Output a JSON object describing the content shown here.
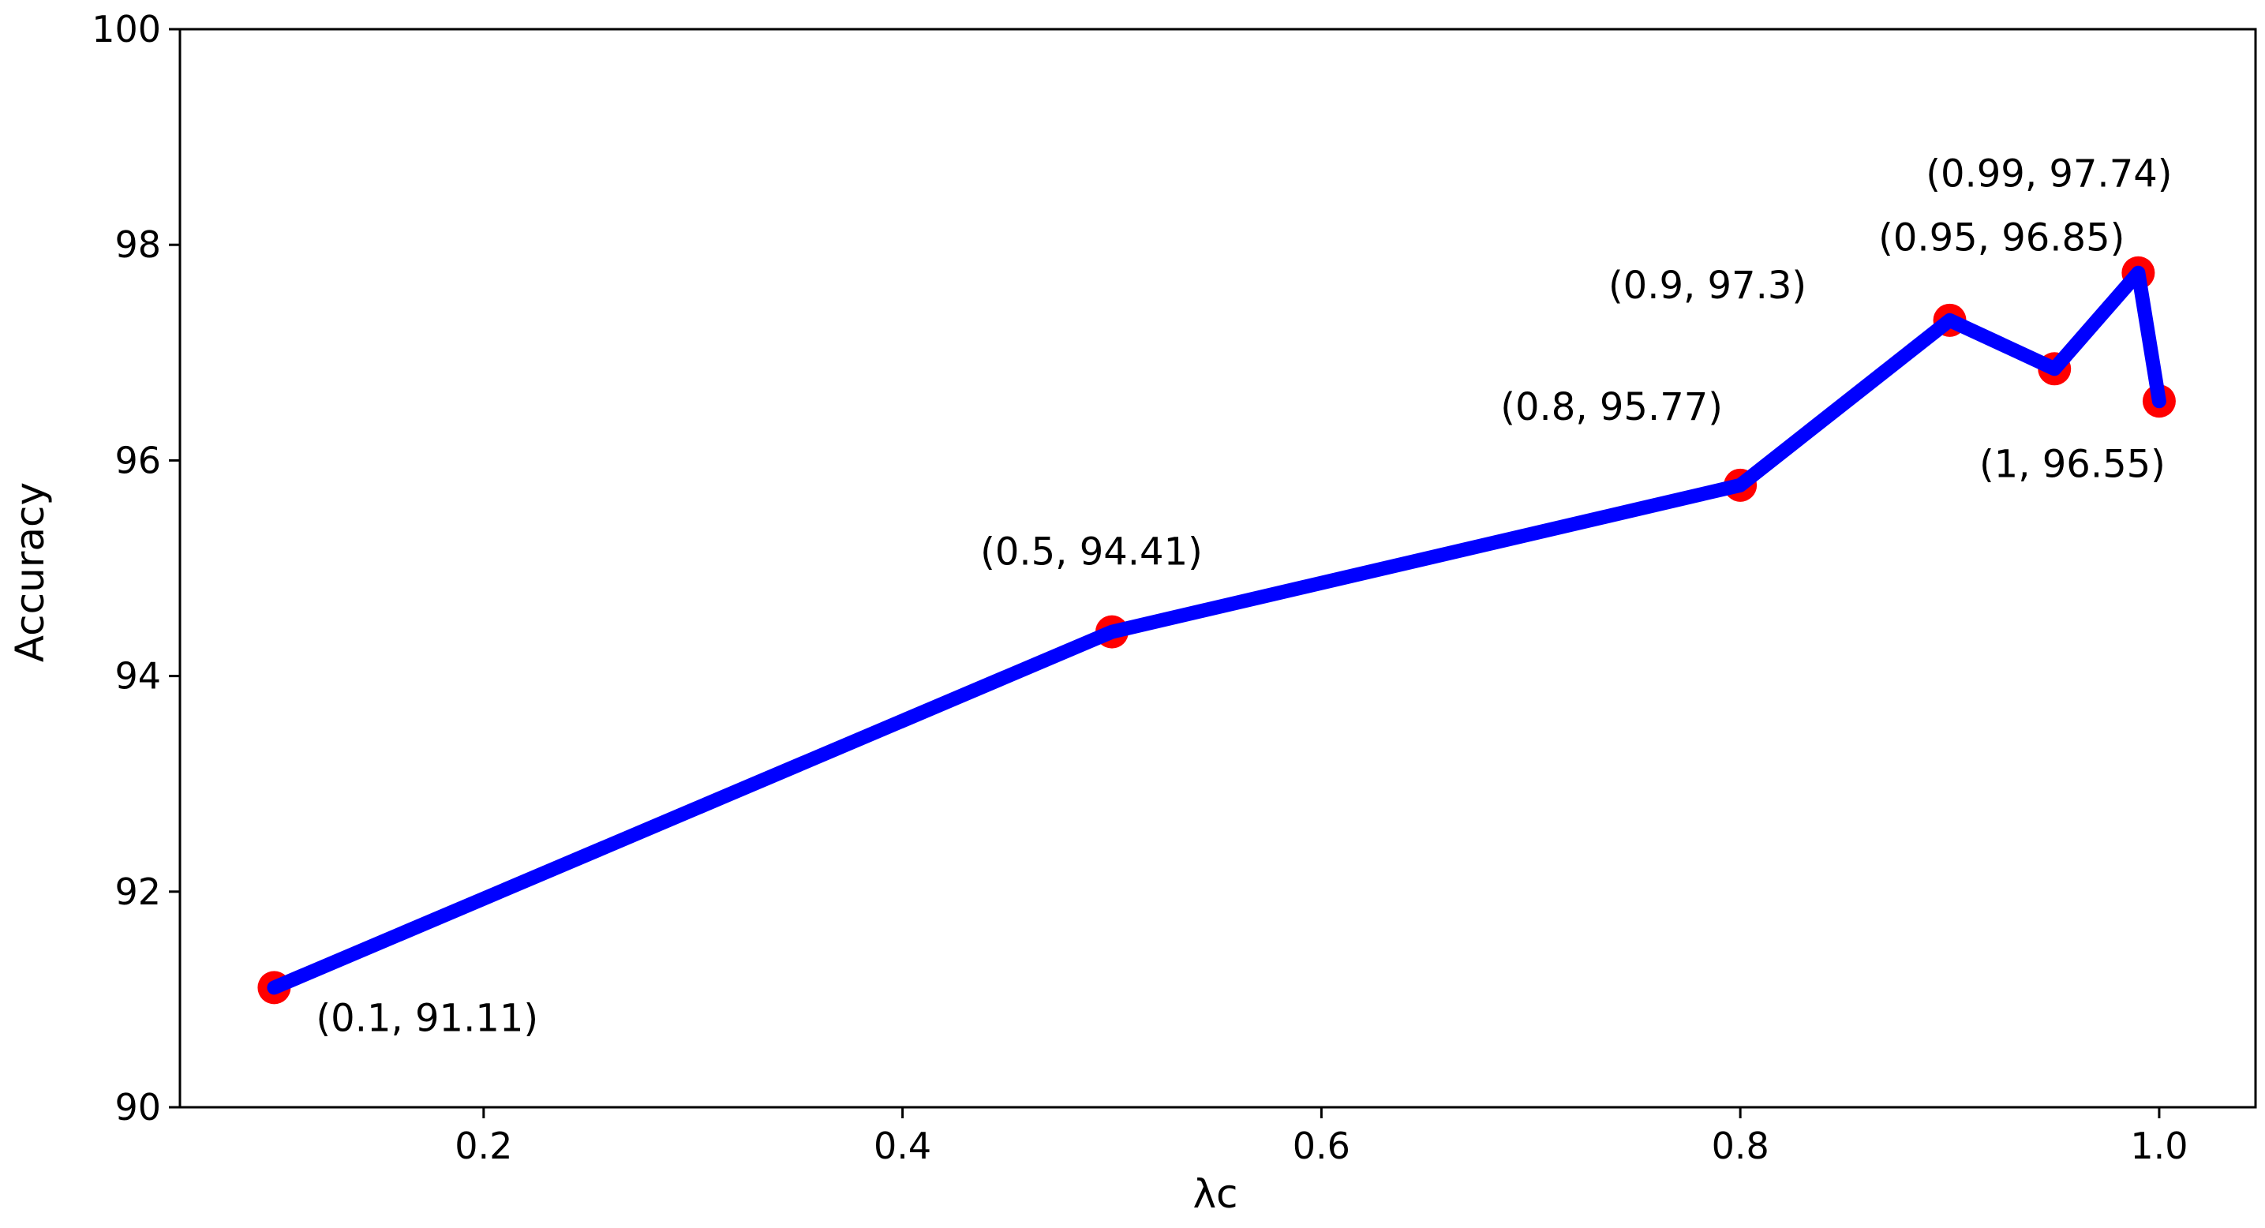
{
  "chart_data": {
    "type": "line",
    "title": "",
    "xlabel": "λc",
    "ylabel": "Accuracy",
    "xlim": [
      0.055,
      1.046
    ],
    "ylim": [
      90,
      100
    ],
    "xticks": [
      0.2,
      0.4,
      0.6,
      0.8,
      1.0
    ],
    "xtick_labels": [
      "0.2",
      "0.4",
      "0.6",
      "0.8",
      "1.0"
    ],
    "yticks": [
      90,
      92,
      94,
      96,
      98,
      100
    ],
    "ytick_labels": [
      "90",
      "92",
      "94",
      "96",
      "98",
      "100"
    ],
    "grid": false,
    "series": [
      {
        "line_color": "#0000ff",
        "marker_color": "#ff0000",
        "x": [
          0.1,
          0.5,
          0.8,
          0.9,
          0.95,
          0.99,
          1.0
        ],
        "y": [
          91.11,
          94.41,
          95.77,
          97.3,
          96.85,
          97.74,
          96.55
        ],
        "labels": [
          "(0.1, 91.11)",
          "(0.5, 94.41)",
          "(0.8, 95.77)",
          "(0.9, 97.3)",
          "(0.95, 96.85)",
          "(0.99, 97.74)",
          "(1, 96.55)"
        ]
      }
    ]
  }
}
